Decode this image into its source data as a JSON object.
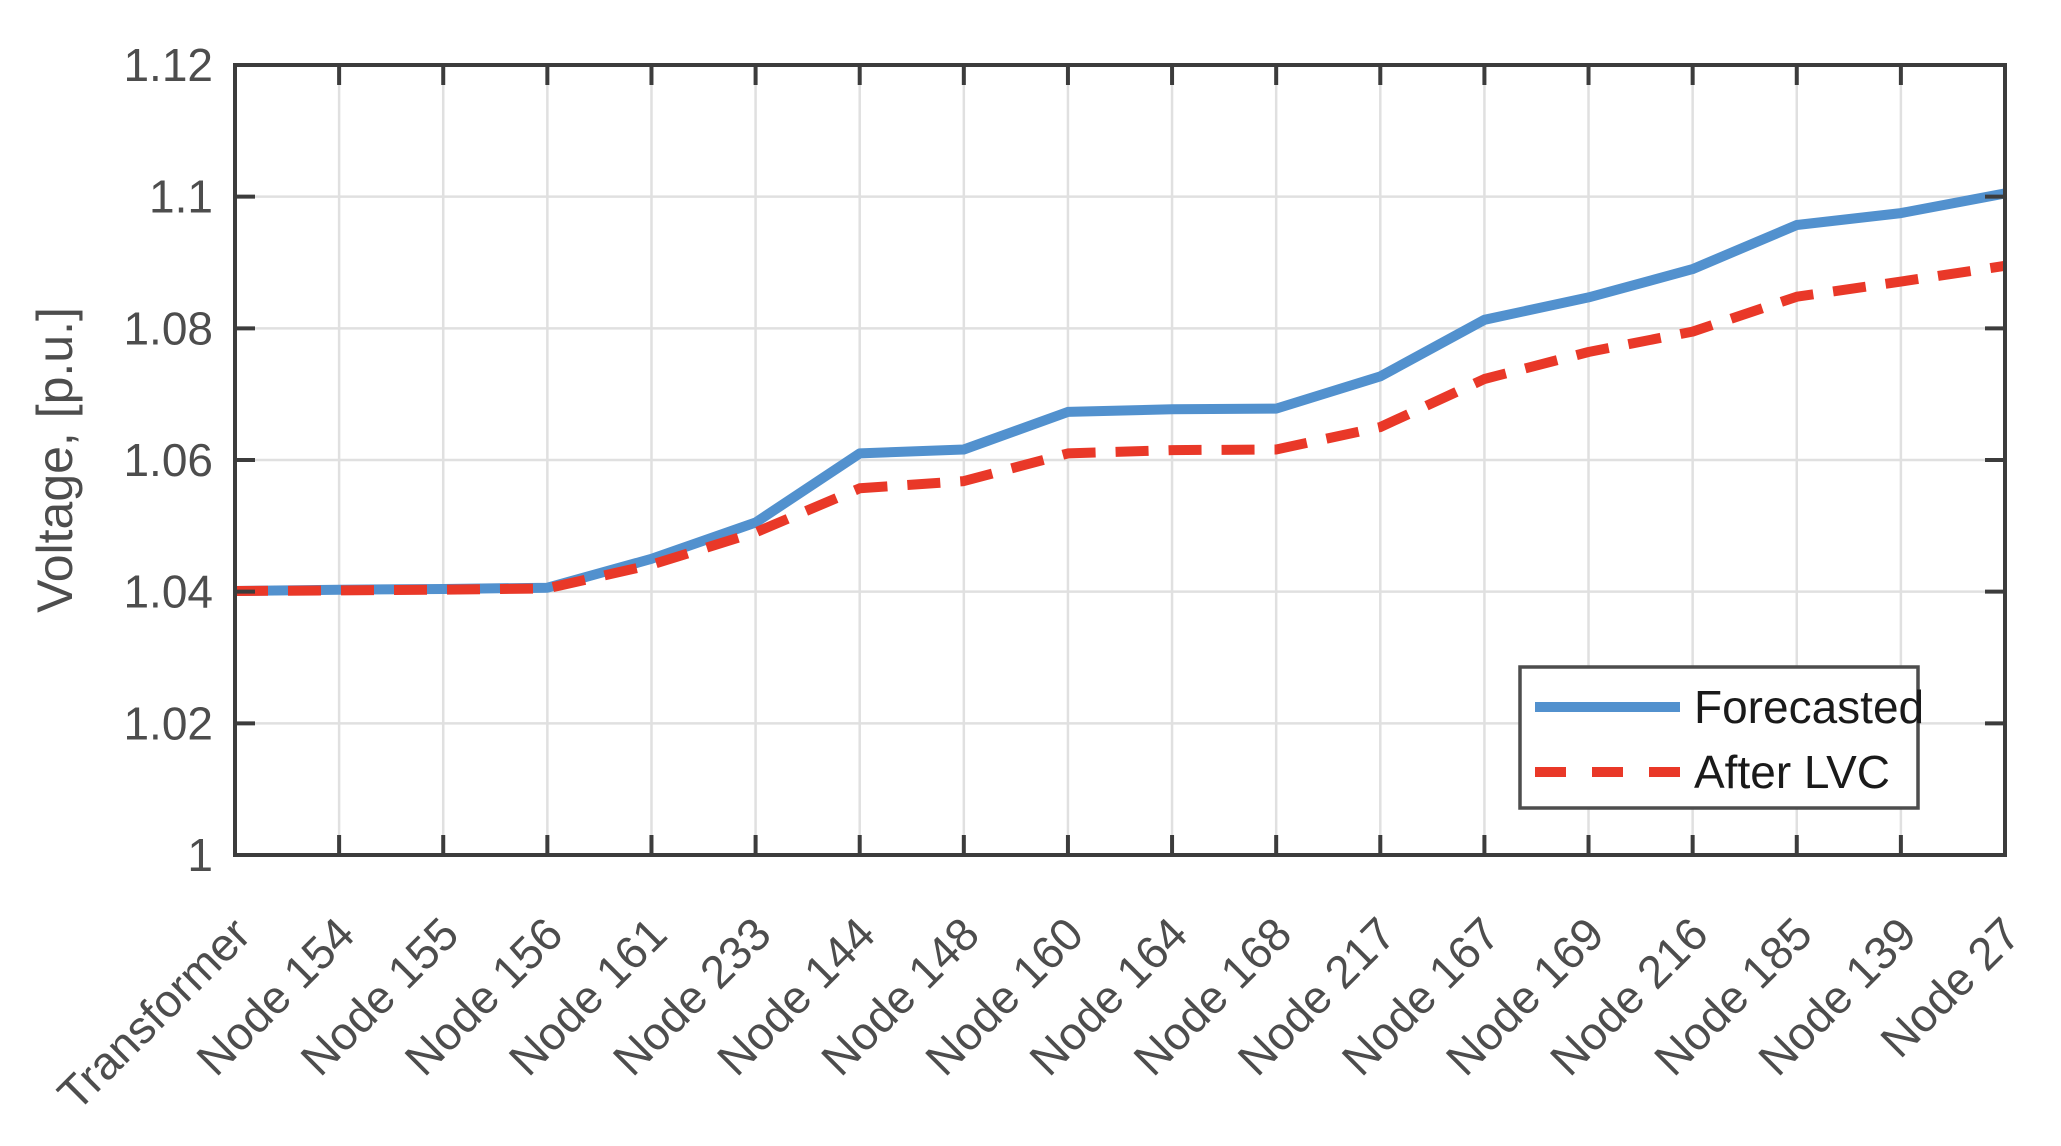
{
  "chart_data": {
    "type": "line",
    "title": "",
    "xlabel": "",
    "ylabel": "Voltage, [p.u.]",
    "ylim": [
      1.0,
      1.12
    ],
    "yticks": [
      1.0,
      1.02,
      1.04,
      1.06,
      1.08,
      1.1,
      1.12
    ],
    "ytick_labels": [
      "1",
      "1.02",
      "1.04",
      "1.06",
      "1.08",
      "1.1",
      "1.12"
    ],
    "grid": true,
    "legend_position": "inside-lower-right",
    "categories": [
      "Transformer",
      "Node 154",
      "Node 155",
      "Node 156",
      "Node 161",
      "Node 233",
      "Node 144",
      "Node 148",
      "Node 160",
      "Node 164",
      "Node 168",
      "Node 217",
      "Node 167",
      "Node 169",
      "Node 216",
      "Node 185",
      "Node 139",
      "Node 27"
    ],
    "series": [
      {
        "name": "Forecasted",
        "style": "solid",
        "color": "#5291CE",
        "values": [
          1.0401,
          1.0403,
          1.0404,
          1.0406,
          1.045,
          1.0505,
          1.061,
          1.0616,
          1.0673,
          1.0677,
          1.0678,
          1.0727,
          1.0813,
          1.0847,
          1.089,
          1.0957,
          1.0975,
          1.1005
        ]
      },
      {
        "name": "After LVC",
        "style": "dashed",
        "color": "#E93828",
        "values": [
          1.0401,
          1.0402,
          1.0403,
          1.0405,
          1.0441,
          1.049,
          1.0557,
          1.0568,
          1.061,
          1.0615,
          1.0616,
          1.065,
          1.0723,
          1.0764,
          1.0795,
          1.0848,
          1.0871,
          1.0895
        ]
      }
    ],
    "colors": {
      "axis": "#3C3C3C",
      "tick_text": "#4D4D4D",
      "grid": "#E0E0E0",
      "legend_border": "#4D4D4D",
      "legend_text": "#1A1A1A",
      "background": "#FFFFFF"
    }
  }
}
